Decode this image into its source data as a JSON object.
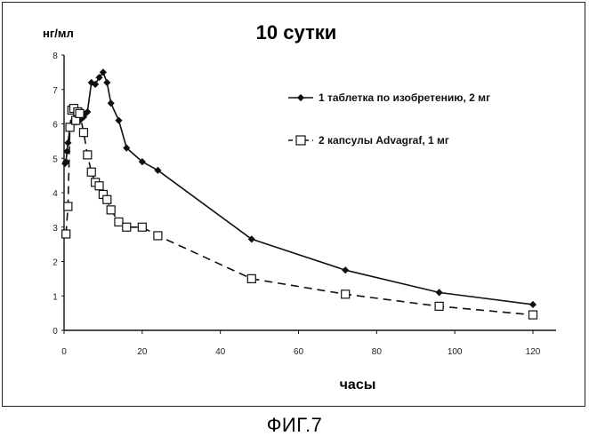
{
  "chart_data": {
    "type": "line",
    "title": "10 сутки",
    "ylabel": "нг/мл",
    "xlabel": "часы",
    "xlim": [
      0,
      120
    ],
    "ylim": [
      0,
      8
    ],
    "x_ticks": [
      0,
      20,
      40,
      60,
      80,
      100,
      120
    ],
    "y_ticks": [
      0,
      1,
      2,
      3,
      4,
      5,
      6,
      7,
      8
    ],
    "x_tick_labels": [
      "0",
      "20",
      "40",
      "60",
      "80",
      "100",
      "120"
    ],
    "y_tick_labels": [
      "0",
      "1",
      "2",
      "3",
      "4",
      "5",
      "6",
      "7",
      "8"
    ],
    "grid": false,
    "legend_position": "top-right",
    "series": [
      {
        "name": "1 таблетка по изобретению, 2 мг",
        "style": "solid",
        "marker": "diamond",
        "points": [
          [
            0.25,
            4.85
          ],
          [
            0.5,
            4.9
          ],
          [
            0.75,
            5.2
          ],
          [
            1,
            5.45
          ],
          [
            1.5,
            5.9
          ],
          [
            2,
            6.0
          ],
          [
            2.5,
            6.1
          ],
          [
            3,
            6.05
          ],
          [
            3.5,
            6.15
          ],
          [
            4,
            6.1
          ],
          [
            4.5,
            6.2
          ],
          [
            5,
            6.2
          ],
          [
            5.5,
            6.3
          ],
          [
            6,
            6.35
          ],
          [
            7,
            7.2
          ],
          [
            8,
            7.15
          ],
          [
            9,
            7.35
          ],
          [
            10,
            7.5
          ],
          [
            11,
            7.2
          ],
          [
            12,
            6.6
          ],
          [
            14,
            6.1
          ],
          [
            16,
            5.3
          ],
          [
            20,
            4.9
          ],
          [
            24,
            4.65
          ],
          [
            48,
            2.65
          ],
          [
            72,
            1.75
          ],
          [
            96,
            1.1
          ],
          [
            120,
            0.75
          ]
        ]
      },
      {
        "name": "2 капсулы Advagraf, 1 мг",
        "style": "dashed",
        "marker": "square",
        "points": [
          [
            0.5,
            2.8
          ],
          [
            1,
            3.6
          ],
          [
            1.5,
            5.9
          ],
          [
            2,
            6.4
          ],
          [
            2.5,
            6.45
          ],
          [
            3,
            6.1
          ],
          [
            3.5,
            6.35
          ],
          [
            4,
            6.3
          ],
          [
            5,
            5.75
          ],
          [
            6,
            5.1
          ],
          [
            7,
            4.6
          ],
          [
            8,
            4.3
          ],
          [
            9,
            4.2
          ],
          [
            10,
            3.95
          ],
          [
            11,
            3.8
          ],
          [
            12,
            3.5
          ],
          [
            14,
            3.15
          ],
          [
            16,
            3.0
          ],
          [
            20,
            3.0
          ],
          [
            24,
            2.75
          ],
          [
            48,
            1.5
          ],
          [
            72,
            1.05
          ],
          [
            96,
            0.7
          ],
          [
            120,
            0.45
          ]
        ]
      }
    ]
  },
  "figure": {
    "caption": "ФИГ.7"
  }
}
